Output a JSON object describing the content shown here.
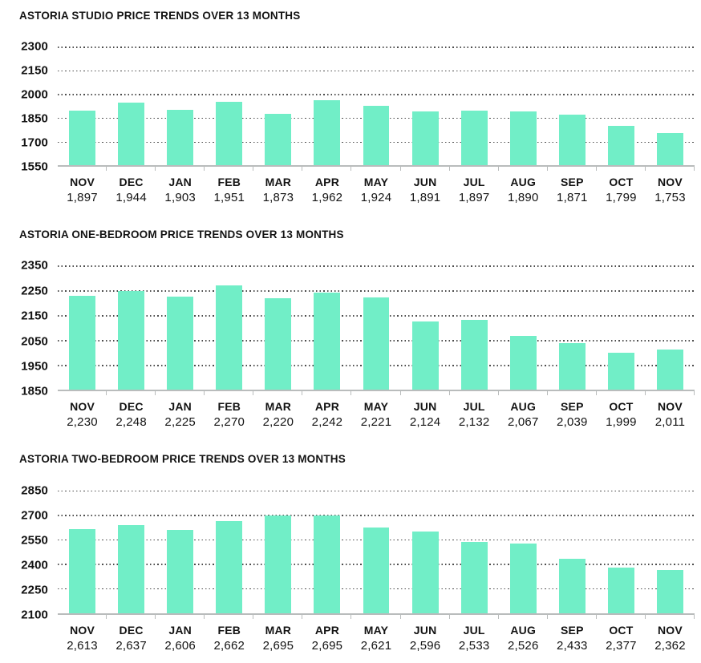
{
  "colors": {
    "bar": "#71eec7",
    "gridline": "#4d4d4d",
    "axis_line": "#b9bcbc",
    "text": "#131313",
    "background": "#ffffff"
  },
  "chart_data": [
    {
      "type": "bar",
      "title": "ASTORIA STUDIO PRICE TRENDS OVER 13 MONTHS",
      "categories": [
        "NOV",
        "DEC",
        "JAN",
        "FEB",
        "MAR",
        "APR",
        "MAY",
        "JUN",
        "JUL",
        "AUG",
        "SEP",
        "OCT",
        "NOV"
      ],
      "values": [
        1897,
        1944,
        1903,
        1951,
        1873,
        1962,
        1924,
        1891,
        1897,
        1890,
        1871,
        1799,
        1753
      ],
      "display_values": [
        "1,897",
        "1,944",
        "1,903",
        "1,951",
        "1,873",
        "1,962",
        "1,924",
        "1,891",
        "1,897",
        "1,890",
        "1,871",
        "1,799",
        "1,753"
      ],
      "y_ticks": [
        2300,
        2150,
        2000,
        1850,
        1700,
        1550
      ],
      "ylim": [
        1550,
        2300
      ],
      "xlabel": "",
      "ylabel": "",
      "grid": "dotted horizontal",
      "legend": "none"
    },
    {
      "type": "bar",
      "title": "ASTORIA ONE-BEDROOM PRICE TRENDS OVER 13 MONTHS",
      "categories": [
        "NOV",
        "DEC",
        "JAN",
        "FEB",
        "MAR",
        "APR",
        "MAY",
        "JUN",
        "JUL",
        "AUG",
        "SEP",
        "OCT",
        "NOV"
      ],
      "values": [
        2230,
        2248,
        2225,
        2270,
        2220,
        2242,
        2221,
        2124,
        2132,
        2067,
        2039,
        1999,
        2011
      ],
      "display_values": [
        "2,230",
        "2,248",
        "2,225",
        "2,270",
        "2,220",
        "2,242",
        "2,221",
        "2,124",
        "2,132",
        "2,067",
        "2,039",
        "1,999",
        "2,011"
      ],
      "y_ticks": [
        2350,
        2250,
        2150,
        2050,
        1950,
        1850
      ],
      "ylim": [
        1850,
        2350
      ],
      "xlabel": "",
      "ylabel": "",
      "grid": "dotted horizontal",
      "legend": "none"
    },
    {
      "type": "bar",
      "title": "ASTORIA TWO-BEDROOM PRICE TRENDS OVER 13 MONTHS",
      "categories": [
        "NOV",
        "DEC",
        "JAN",
        "FEB",
        "MAR",
        "APR",
        "MAY",
        "JUN",
        "JUL",
        "AUG",
        "SEP",
        "OCT",
        "NOV"
      ],
      "values": [
        2613,
        2637,
        2606,
        2662,
        2695,
        2695,
        2621,
        2596,
        2533,
        2526,
        2433,
        2377,
        2362
      ],
      "display_values": [
        "2,613",
        "2,637",
        "2,606",
        "2,662",
        "2,695",
        "2,695",
        "2,621",
        "2,596",
        "2,533",
        "2,526",
        "2,433",
        "2,377",
        "2,362"
      ],
      "y_ticks": [
        2850,
        2700,
        2550,
        2400,
        2250,
        2100
      ],
      "ylim": [
        2100,
        2850
      ],
      "xlabel": "",
      "ylabel": "",
      "grid": "dotted horizontal",
      "legend": "none"
    }
  ]
}
